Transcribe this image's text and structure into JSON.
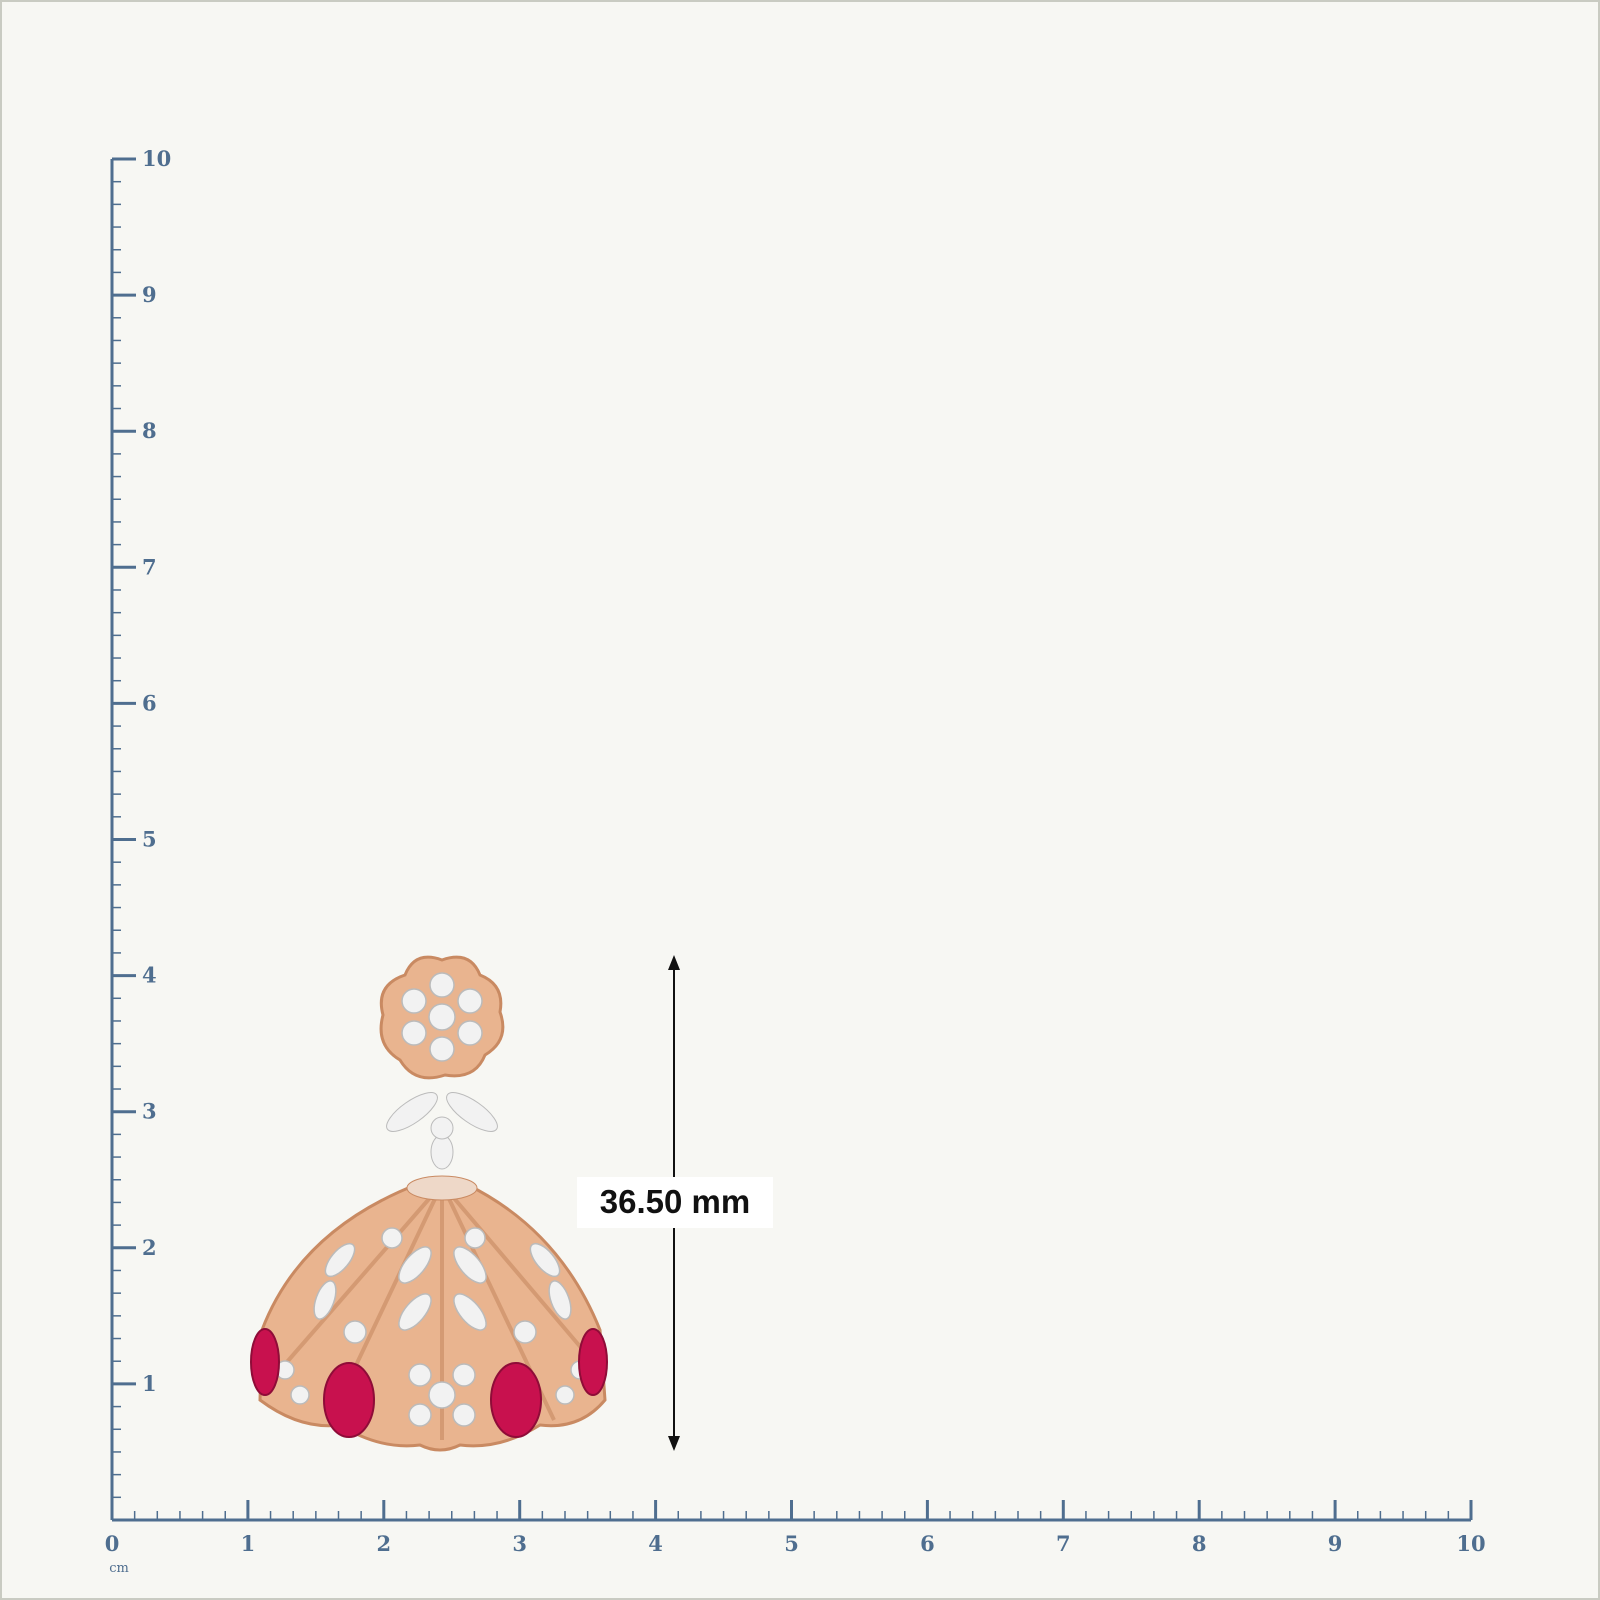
{
  "ruler": {
    "unit": "cm",
    "labels": [
      0,
      1,
      2,
      3,
      4,
      5,
      6,
      7,
      8,
      9,
      10
    ]
  },
  "measurement": {
    "label": "36.50 mm"
  }
}
